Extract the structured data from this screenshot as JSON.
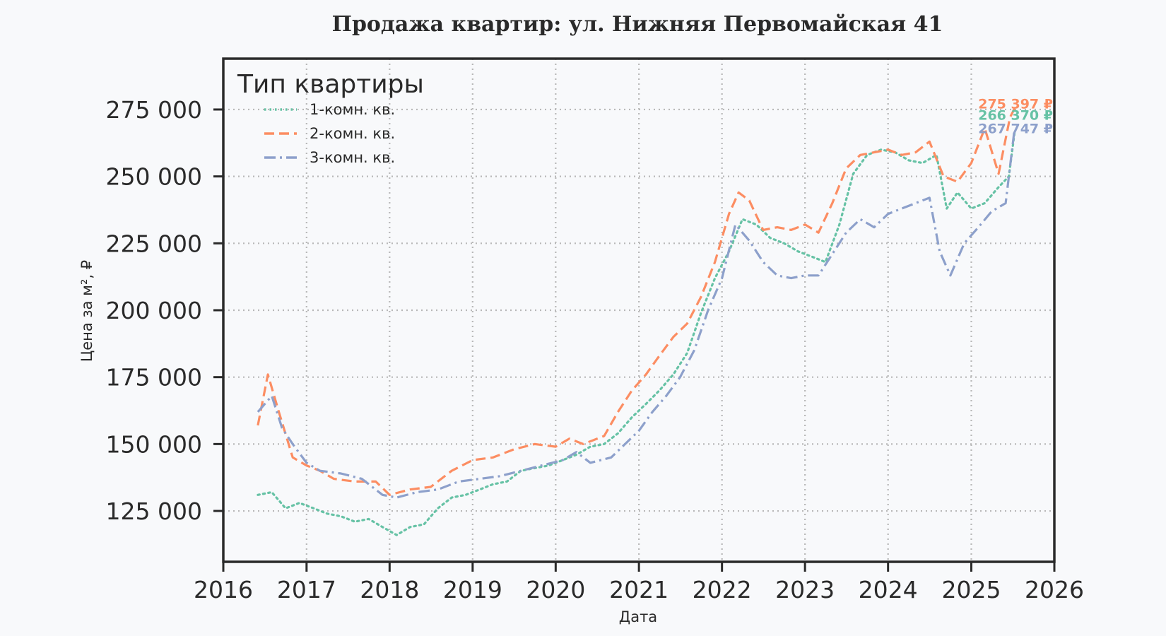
{
  "chart_data": {
    "type": "line",
    "title": "Продажа квартир: ул. Нижняя Первомайская 41",
    "xlabel": "Дата",
    "ylabel": "Цена за м², ₽",
    "x_ticks": [
      "2016",
      "2017",
      "2018",
      "2019",
      "2020",
      "2021",
      "2022",
      "2023",
      "2024",
      "2025",
      "2026"
    ],
    "y_ticks": [
      "125 000",
      "150 000",
      "175 000",
      "200 000",
      "225 000",
      "250 000",
      "275 000"
    ],
    "xlim": [
      "2016-01-01",
      "2026-01-01"
    ],
    "ylim": [
      106000,
      294000
    ],
    "grid": true,
    "legend": {
      "title": "Тип квартиры",
      "placement": "top-left"
    },
    "series": [
      {
        "name": "1-комн. кв.",
        "color": "#66c2a5",
        "line_style": "dotted",
        "end_label": "266 370 ₽",
        "points": [
          [
            "2016-06-01",
            131000
          ],
          [
            "2016-08-01",
            132000
          ],
          [
            "2016-10-01",
            126000
          ],
          [
            "2016-12-01",
            128000
          ],
          [
            "2017-02-01",
            126000
          ],
          [
            "2017-04-01",
            124000
          ],
          [
            "2017-06-01",
            123000
          ],
          [
            "2017-08-01",
            121000
          ],
          [
            "2017-10-01",
            122000
          ],
          [
            "2017-12-01",
            119000
          ],
          [
            "2018-02-01",
            116000
          ],
          [
            "2018-04-01",
            119000
          ],
          [
            "2018-06-01",
            120000
          ],
          [
            "2018-08-01",
            126000
          ],
          [
            "2018-10-01",
            130000
          ],
          [
            "2018-12-01",
            131000
          ],
          [
            "2019-02-01",
            133000
          ],
          [
            "2019-04-01",
            135000
          ],
          [
            "2019-06-01",
            136000
          ],
          [
            "2019-08-01",
            140000
          ],
          [
            "2019-10-01",
            141000
          ],
          [
            "2019-12-01",
            142000
          ],
          [
            "2020-02-01",
            144000
          ],
          [
            "2020-04-01",
            146000
          ],
          [
            "2020-06-01",
            149000
          ],
          [
            "2020-08-01",
            150000
          ],
          [
            "2020-10-01",
            154000
          ],
          [
            "2020-12-01",
            160000
          ],
          [
            "2021-02-01",
            165000
          ],
          [
            "2021-04-01",
            170000
          ],
          [
            "2021-06-01",
            176000
          ],
          [
            "2021-08-01",
            184000
          ],
          [
            "2021-10-01",
            199000
          ],
          [
            "2021-12-01",
            212000
          ],
          [
            "2022-02-01",
            222000
          ],
          [
            "2022-04-01",
            234000
          ],
          [
            "2022-06-01",
            232000
          ],
          [
            "2022-08-01",
            227000
          ],
          [
            "2022-10-01",
            225000
          ],
          [
            "2022-12-01",
            222000
          ],
          [
            "2023-02-01",
            220000
          ],
          [
            "2023-04-01",
            218000
          ],
          [
            "2023-06-01",
            232000
          ],
          [
            "2023-08-01",
            251000
          ],
          [
            "2023-10-01",
            258000
          ],
          [
            "2023-12-01",
            260000
          ],
          [
            "2024-02-01",
            259000
          ],
          [
            "2024-04-01",
            256000
          ],
          [
            "2024-06-01",
            255000
          ],
          [
            "2024-08-01",
            258000
          ],
          [
            "2024-09-15",
            238000
          ],
          [
            "2024-11-01",
            244000
          ],
          [
            "2025-01-01",
            238000
          ],
          [
            "2025-03-01",
            240000
          ],
          [
            "2025-05-01",
            246000
          ],
          [
            "2025-06-15",
            250000
          ],
          [
            "2025-07-10",
            266370
          ]
        ]
      },
      {
        "name": "2-комн. кв.",
        "color": "#fc8d62",
        "line_style": "dashed",
        "end_label": "275 397 ₽",
        "points": [
          [
            "2016-06-01",
            157000
          ],
          [
            "2016-07-15",
            176000
          ],
          [
            "2016-09-01",
            162000
          ],
          [
            "2016-11-01",
            145000
          ],
          [
            "2017-01-01",
            142000
          ],
          [
            "2017-03-01",
            140000
          ],
          [
            "2017-05-01",
            137000
          ],
          [
            "2017-08-01",
            136000
          ],
          [
            "2017-11-01",
            136000
          ],
          [
            "2018-01-01",
            131000
          ],
          [
            "2018-04-01",
            133000
          ],
          [
            "2018-07-01",
            134000
          ],
          [
            "2018-10-01",
            140000
          ],
          [
            "2019-01-01",
            144000
          ],
          [
            "2019-04-01",
            145000
          ],
          [
            "2019-07-01",
            148000
          ],
          [
            "2019-10-01",
            150000
          ],
          [
            "2020-01-01",
            149000
          ],
          [
            "2020-03-01",
            152000
          ],
          [
            "2020-05-01",
            150000
          ],
          [
            "2020-08-01",
            153000
          ],
          [
            "2020-10-01",
            162000
          ],
          [
            "2020-12-01",
            170000
          ],
          [
            "2021-02-01",
            176000
          ],
          [
            "2021-04-01",
            183000
          ],
          [
            "2021-06-01",
            190000
          ],
          [
            "2021-08-01",
            195000
          ],
          [
            "2021-10-01",
            205000
          ],
          [
            "2021-12-01",
            218000
          ],
          [
            "2022-02-01",
            236000
          ],
          [
            "2022-03-15",
            244000
          ],
          [
            "2022-05-01",
            241000
          ],
          [
            "2022-07-01",
            230000
          ],
          [
            "2022-09-01",
            231000
          ],
          [
            "2022-11-01",
            230000
          ],
          [
            "2023-01-01",
            232000
          ],
          [
            "2023-03-01",
            229000
          ],
          [
            "2023-05-01",
            240000
          ],
          [
            "2023-07-01",
            253000
          ],
          [
            "2023-09-01",
            258000
          ],
          [
            "2023-11-01",
            259000
          ],
          [
            "2024-01-01",
            260000
          ],
          [
            "2024-03-01",
            258000
          ],
          [
            "2024-05-01",
            259000
          ],
          [
            "2024-07-01",
            263000
          ],
          [
            "2024-09-01",
            250000
          ],
          [
            "2024-11-01",
            248000
          ],
          [
            "2025-01-01",
            255000
          ],
          [
            "2025-03-01",
            268000
          ],
          [
            "2025-05-01",
            251000
          ],
          [
            "2025-06-20",
            272000
          ],
          [
            "2025-07-10",
            275397
          ]
        ]
      },
      {
        "name": "3-комн. кв.",
        "color": "#8da0cb",
        "line_style": "dashdot",
        "end_label": "267 747 ₽",
        "points": [
          [
            "2016-06-01",
            162000
          ],
          [
            "2016-08-01",
            168000
          ],
          [
            "2016-09-15",
            156000
          ],
          [
            "2016-11-01",
            150000
          ],
          [
            "2017-01-01",
            143000
          ],
          [
            "2017-03-01",
            140000
          ],
          [
            "2017-06-01",
            139000
          ],
          [
            "2017-09-01",
            137000
          ],
          [
            "2017-12-01",
            131000
          ],
          [
            "2018-02-01",
            130000
          ],
          [
            "2018-05-01",
            132000
          ],
          [
            "2018-08-01",
            133000
          ],
          [
            "2018-11-01",
            136000
          ],
          [
            "2019-02-01",
            137000
          ],
          [
            "2019-05-01",
            138000
          ],
          [
            "2019-08-01",
            140000
          ],
          [
            "2019-11-01",
            142000
          ],
          [
            "2020-02-01",
            144000
          ],
          [
            "2020-04-01",
            147000
          ],
          [
            "2020-06-01",
            143000
          ],
          [
            "2020-09-01",
            145000
          ],
          [
            "2020-11-01",
            150000
          ],
          [
            "2021-01-01",
            155000
          ],
          [
            "2021-03-01",
            162000
          ],
          [
            "2021-05-01",
            168000
          ],
          [
            "2021-07-01",
            175000
          ],
          [
            "2021-09-01",
            185000
          ],
          [
            "2021-11-01",
            200000
          ],
          [
            "2022-01-01",
            212000
          ],
          [
            "2022-03-01",
            232000
          ],
          [
            "2022-05-01",
            226000
          ],
          [
            "2022-07-01",
            218000
          ],
          [
            "2022-09-01",
            213000
          ],
          [
            "2022-11-01",
            212000
          ],
          [
            "2023-01-01",
            213000
          ],
          [
            "2023-03-01",
            213000
          ],
          [
            "2023-05-01",
            221000
          ],
          [
            "2023-07-01",
            229000
          ],
          [
            "2023-09-01",
            234000
          ],
          [
            "2023-11-01",
            231000
          ],
          [
            "2024-01-01",
            236000
          ],
          [
            "2024-03-01",
            238000
          ],
          [
            "2024-05-01",
            240000
          ],
          [
            "2024-07-01",
            242000
          ],
          [
            "2024-08-15",
            222000
          ],
          [
            "2024-10-01",
            213000
          ],
          [
            "2024-12-01",
            225000
          ],
          [
            "2025-02-01",
            231000
          ],
          [
            "2025-04-01",
            237000
          ],
          [
            "2025-06-01",
            240000
          ],
          [
            "2025-07-10",
            267747
          ]
        ]
      }
    ]
  }
}
